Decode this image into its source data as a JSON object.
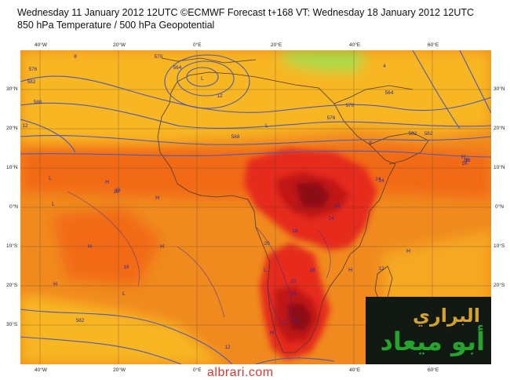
{
  "title": {
    "line1": "Wednesday 11 January 2012 12UTC ©ECMWF Forecast t+168 VT: Wednesday 18 January 2012 12UTC",
    "line2": "850 hPa Temperature / 500 hPa Geopotential"
  },
  "axes": {
    "lon_labels": [
      "40°W",
      "20°W",
      "0°E",
      "20°E",
      "40°E",
      "60°E"
    ],
    "lat_labels": [
      "30°N",
      "20°N",
      "10°N",
      "0°N",
      "10°S",
      "20°S",
      "30°S"
    ]
  },
  "colors": {
    "warm_orange": "#f08a1e",
    "mid_orange": "#f26a16",
    "yellow_orange": "#f8b624",
    "red": "#e62a1c",
    "deep_red": "#c01212",
    "dark_red": "#8c0a12",
    "green": "#a8dc46",
    "contour_blue": "#4a5ab8"
  },
  "contour_labels": [
    "576",
    "582",
    "588",
    "570",
    "564",
    "570",
    "576",
    "582",
    "588",
    "12",
    "16",
    "18",
    "16",
    "20",
    "24",
    "28",
    "24",
    "20",
    "16",
    "12",
    "8",
    "4",
    "12",
    "16",
    "20",
    "24",
    "16",
    "12",
    "8",
    "24",
    "18",
    "16",
    "582",
    "582",
    "564"
  ],
  "logo": {
    "line1": "البراري",
    "line2": "أبو ميعاد"
  },
  "watermark": "albrari.com"
}
